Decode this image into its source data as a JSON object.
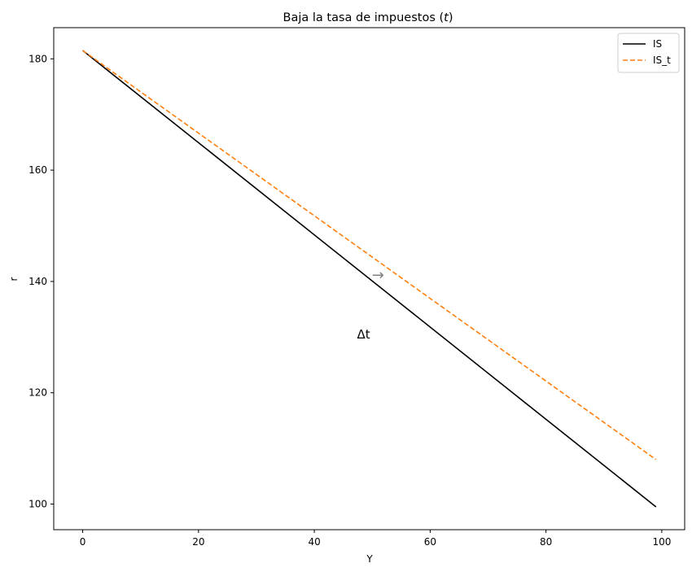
{
  "chart_data": {
    "type": "line",
    "title": "Baja la tasa de impuestos (t)",
    "title_plain": "Baja la tasa de impuestos (",
    "title_var": "t",
    "title_close": ")",
    "xlabel": "Y",
    "ylabel": "r",
    "xlim": [
      -5,
      103.95
    ],
    "ylim": [
      95.4,
      185.6
    ],
    "xticks": [
      0,
      20,
      40,
      60,
      80,
      100
    ],
    "yticks": [
      100,
      120,
      140,
      160,
      180
    ],
    "grid": false,
    "legend": "top-right",
    "series": [
      {
        "name": "IS",
        "x": [
          0,
          99
        ],
        "y": [
          181.5,
          99.5
        ],
        "color": "#000000",
        "style": "solid"
      },
      {
        "name": "IS_t",
        "x": [
          0,
          99
        ],
        "y": [
          181.5,
          108.0
        ],
        "color": "#ff7f0e",
        "style": "dashed"
      }
    ],
    "annotations": [
      {
        "text": "→",
        "x": 51,
        "y": 141.0,
        "color": "#808080"
      },
      {
        "text": "Δt",
        "x": 48.5,
        "y": 130.5,
        "color": "#000000"
      }
    ]
  }
}
